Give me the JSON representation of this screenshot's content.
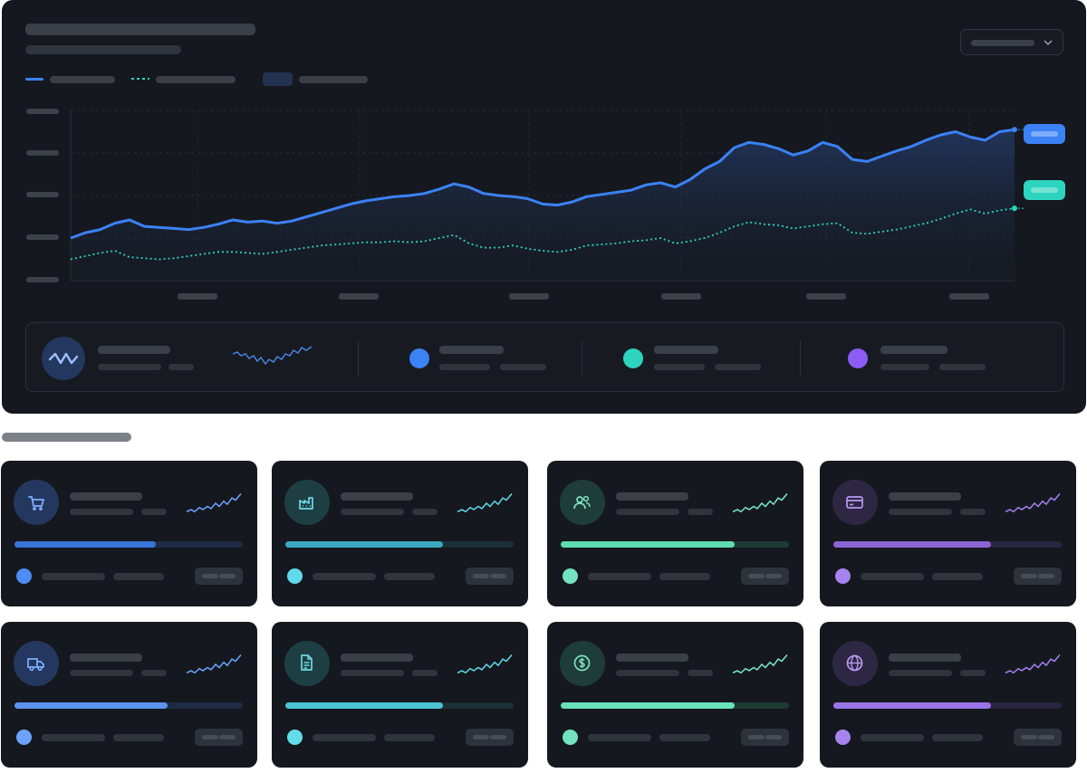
{
  "dashboard": {
    "series": [
      {
        "color": "#3b82f6",
        "style": "solid"
      },
      {
        "color": "#2dd4bf",
        "style": "dashed"
      }
    ],
    "dropdown": {
      "icon": "chevron-down-icon"
    }
  },
  "chart_data": {
    "type": "area",
    "series": [
      {
        "values": [
          40,
          45,
          48,
          54,
          57,
          51,
          50,
          49,
          48,
          50,
          53,
          57,
          55,
          56,
          54,
          56,
          60,
          64,
          68,
          72,
          75,
          77,
          79,
          80,
          82,
          86,
          91,
          88,
          82,
          80,
          79,
          77,
          72,
          71,
          74,
          79,
          81,
          83,
          85,
          90,
          92,
          88,
          95,
          105,
          112,
          125,
          130,
          128,
          124,
          118,
          122,
          130,
          126,
          114,
          112,
          117,
          122,
          126,
          132,
          137,
          140,
          135,
          132,
          140,
          142
        ]
      },
      {
        "values": [
          20,
          23,
          26,
          28,
          22,
          21,
          20,
          21,
          23,
          25,
          27,
          27,
          26,
          25,
          27,
          29,
          31,
          33,
          34,
          35,
          36,
          36,
          37,
          36,
          37,
          40,
          43,
          35,
          31,
          31,
          33,
          30,
          28,
          27,
          29,
          33,
          34,
          35,
          37,
          38,
          40,
          35,
          37,
          40,
          45,
          51,
          55,
          53,
          52,
          49,
          51,
          53,
          54,
          45,
          44,
          46,
          48,
          51,
          54,
          58,
          63,
          67,
          63,
          66,
          68
        ]
      }
    ],
    "grid": true
  },
  "summary": {
    "icon": "wave-pulse-icon",
    "dots": [
      "#3b82f6",
      "#2dd4bf",
      "#8b5cf6"
    ]
  },
  "cards": [
    {
      "icon": "shopping-cart-icon",
      "icon_bg": "#24375e",
      "icon_color": "#7fb0ff",
      "spark": "#6aa2ff",
      "track": "#1e2b44",
      "fill": "#3b74d8",
      "progress": 0.62,
      "dot": "#4d8df5"
    },
    {
      "icon": "factory-icon",
      "icon_bg": "#1d3f43",
      "icon_color": "#6fd8e4",
      "spark": "#5cd7e6",
      "track": "#1b3036",
      "fill": "#3aa9c2",
      "progress": 0.69,
      "dot": "#5fd9ec"
    },
    {
      "icon": "users-icon",
      "icon_bg": "#1f3d38",
      "icon_color": "#7de0c0",
      "spark": "#78e6c2",
      "track": "#1d3a33",
      "fill": "#5dddb0",
      "progress": 0.76,
      "dot": "#73e2bf"
    },
    {
      "icon": "credit-card-icon",
      "icon_bg": "#2e2744",
      "icon_color": "#b79af0",
      "spark": "#a57ef0",
      "track": "#2a2540",
      "fill": "#8b65d6",
      "progress": 0.69,
      "dot": "#a783f0"
    },
    {
      "icon": "truck-icon",
      "icon_bg": "#24375e",
      "icon_color": "#7fb0ff",
      "spark": "#6aa2ff",
      "track": "#1e2b44",
      "fill": "#5b94f0",
      "progress": 0.67,
      "dot": "#6ca3ff"
    },
    {
      "icon": "document-icon",
      "icon_bg": "#1d3f43",
      "icon_color": "#6fd8e4",
      "spark": "#5cd7e6",
      "track": "#1b3036",
      "fill": "#4cc4d4",
      "progress": 0.69,
      "dot": "#63dde9"
    },
    {
      "icon": "dollar-icon",
      "icon_bg": "#1f3d38",
      "icon_color": "#7de0c0",
      "spark": "#78e6c2",
      "track": "#1d3a33",
      "fill": "#68e0b8",
      "progress": 0.76,
      "dot": "#73e2bf"
    },
    {
      "icon": "globe-icon",
      "icon_bg": "#2e2744",
      "icon_color": "#b79af0",
      "spark": "#a57ef0",
      "track": "#2a2540",
      "fill": "#9a73e8",
      "progress": 0.69,
      "dot": "#a783f0"
    }
  ]
}
